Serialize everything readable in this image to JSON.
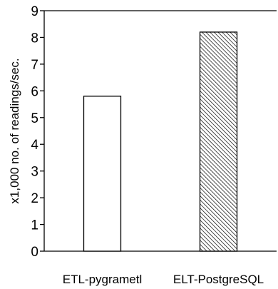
{
  "chart_data": {
    "type": "bar",
    "categories": [
      "ETL-pygrametl",
      "ELT-PostgreSQL"
    ],
    "values": [
      5.8,
      8.2
    ],
    "bar_styles": [
      "plain",
      "hatched"
    ],
    "ylabel": "x1,000 no. of readings/sec.",
    "xlabel": "",
    "ylim": [
      0,
      9
    ],
    "yticks": [
      0,
      1,
      2,
      3,
      4,
      5,
      6,
      7,
      8,
      9
    ],
    "grid": false,
    "colors": {
      "axis": "#000000",
      "bar_fill": "#ffffff",
      "bar_stroke": "#000000",
      "hatch": "#000000"
    }
  }
}
